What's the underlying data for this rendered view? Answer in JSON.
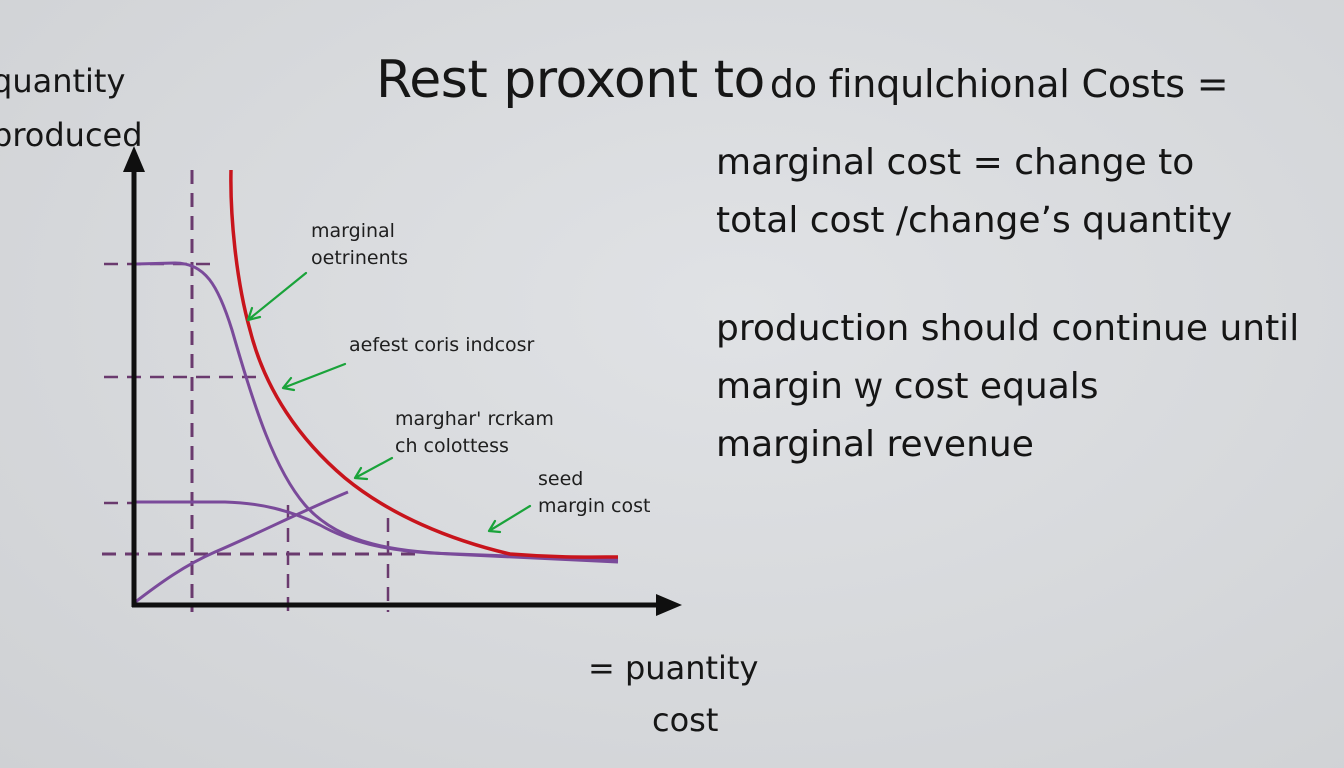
{
  "title": {
    "main": "Rest proxont to",
    "rest": "do finqulchional Costs ="
  },
  "axes": {
    "y_label_line1": "quantity",
    "y_label_line2": "produced",
    "x_label_line1": "= puantity",
    "x_label_line2": "cost"
  },
  "annotations": {
    "a1_line1": "marginal",
    "a1_line2": "oetrinents",
    "a2": "aefest coris indcosr",
    "a3_line1": "marghar' rcrkam",
    "a3_line2": "ch colottess",
    "a4_line1": "seed",
    "a4_line2": "margin cost"
  },
  "definition": {
    "line1": "marginal cost = change to",
    "line2": "total cost /change’s quantity"
  },
  "rule": {
    "line1": "production should continue until",
    "line2": "margin ꝡ cost equals",
    "line3": "marginal revenue"
  },
  "colors": {
    "axis": "#0f0f0f",
    "marginal_cost_curve": "#c8141c",
    "purple_curves": "#7a4a9a",
    "guide_lines": "#6a3a6e",
    "arrows": "#1aa33a",
    "background": "#d8dadd"
  }
}
